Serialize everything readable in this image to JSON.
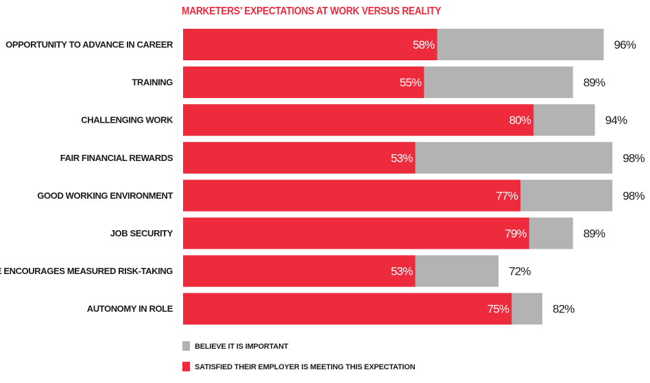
{
  "chart_data": {
    "type": "bar",
    "orientation": "horizontal",
    "title": "MARKETERS’ EXPECTATIONS AT WORK VERSUS REALITY",
    "categories": [
      "OPPORTUNITY TO ADVANCE IN CAREER",
      "TRAINING",
      "CHALLENGING WORK",
      "FAIR FINANCIAL REWARDS",
      "GOOD WORKING ENVIRONMENT",
      "JOB SECURITY",
      "CULTURE ENCOURAGES MEASURED RISK-TAKING",
      "AUTONOMY IN ROLE"
    ],
    "series": [
      {
        "name": "BELIEVE IT IS IMPORTANT",
        "values": [
          96,
          89,
          94,
          98,
          98,
          89,
          72,
          82
        ],
        "labels": [
          "96%",
          "89%",
          "94%",
          "98%",
          "98%",
          "89%",
          "72%",
          "82%"
        ],
        "color": "#b3b3b3"
      },
      {
        "name": "SATISFIED THEIR EMPLOYER IS MEETING THIS EXPECTATION",
        "values": [
          58,
          55,
          80,
          53,
          77,
          79,
          53,
          75
        ],
        "labels": [
          "58%",
          "55%",
          "80%",
          "53%",
          "77%",
          "79%",
          "53%",
          "75%"
        ],
        "color": "#ee2a3d"
      }
    ],
    "xlim": [
      0,
      100
    ],
    "legend_position": "bottom-left",
    "grid": false
  },
  "colors": {
    "title": "#ee2a3d",
    "background": "#ffffff"
  }
}
